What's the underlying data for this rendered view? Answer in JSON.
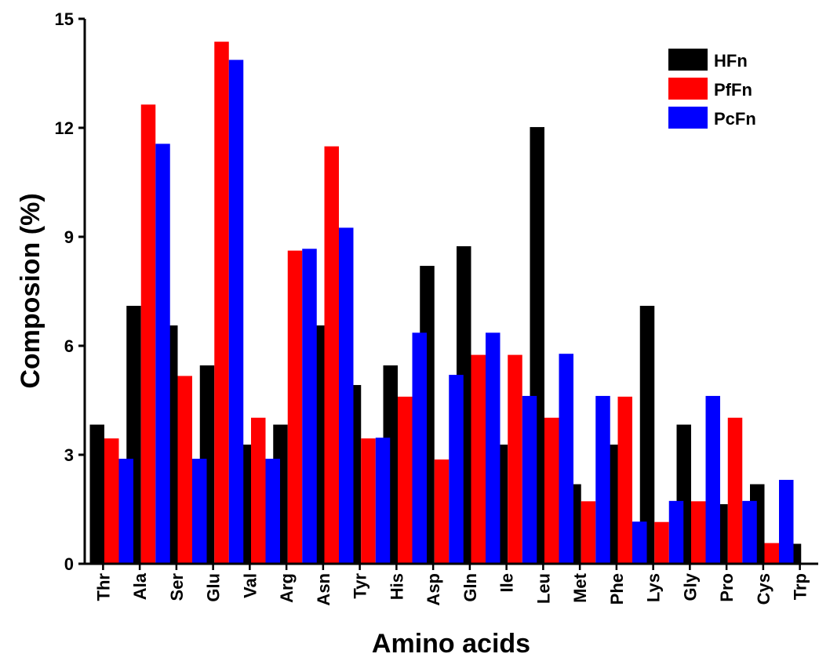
{
  "chart_data": {
    "type": "bar",
    "ylabel": "Composion (%)",
    "xlabel": "Amino acids",
    "ylim": [
      0,
      15
    ],
    "yticks": [
      "0",
      "3",
      "6",
      "9",
      "12",
      "15"
    ],
    "ytick_values": [
      0,
      3,
      6,
      9,
      12,
      15
    ],
    "categories": [
      "Thr",
      "Ala",
      "Ser",
      "Glu",
      "Val",
      "Arg",
      "Asn",
      "Tyr",
      "His",
      "Asp",
      "Gln",
      "Ile",
      "Leu",
      "Met",
      "Phe",
      "Lys",
      "Gly",
      "Pro",
      "Cys",
      "Trp"
    ],
    "series": [
      {
        "name": "HFn",
        "color": "#000000",
        "values": [
          3.83,
          7.1,
          6.56,
          5.46,
          3.28,
          3.83,
          6.56,
          4.92,
          5.46,
          8.2,
          8.74,
          3.28,
          12.02,
          2.19,
          3.28,
          7.1,
          3.83,
          1.64,
          2.19,
          0.55
        ]
      },
      {
        "name": "PfFn",
        "color": "#ff0000",
        "values": [
          3.45,
          12.64,
          5.17,
          14.37,
          4.02,
          8.62,
          11.49,
          3.45,
          4.6,
          2.87,
          5.75,
          5.75,
          4.02,
          1.72,
          4.6,
          1.15,
          1.72,
          4.02,
          0.57,
          0
        ]
      },
      {
        "name": "PcFn",
        "color": "#0000ff",
        "values": [
          2.89,
          11.56,
          2.89,
          13.87,
          2.89,
          8.67,
          9.25,
          3.47,
          6.36,
          5.2,
          6.36,
          4.62,
          5.78,
          4.62,
          1.16,
          1.73,
          4.62,
          1.73,
          2.31,
          0
        ]
      }
    ],
    "legend_position": "top-right",
    "grid": false
  }
}
